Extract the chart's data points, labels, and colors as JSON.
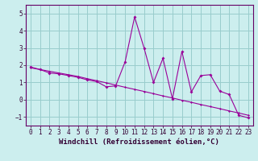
{
  "xlabel": "Windchill (Refroidissement éolien,°C)",
  "background_color": "#cceeee",
  "grid_color": "#99cccc",
  "line_color": "#990099",
  "xlim": [
    -0.5,
    23.5
  ],
  "ylim": [
    -1.5,
    5.5
  ],
  "yticks": [
    -1,
    0,
    1,
    2,
    3,
    4,
    5
  ],
  "xticks": [
    0,
    1,
    2,
    3,
    4,
    5,
    6,
    7,
    8,
    9,
    10,
    11,
    12,
    13,
    14,
    15,
    16,
    17,
    18,
    19,
    20,
    21,
    22,
    23
  ],
  "data_x": [
    0,
    1,
    2,
    3,
    4,
    5,
    6,
    7,
    8,
    9,
    10,
    11,
    12,
    13,
    14,
    15,
    16,
    17,
    18,
    19,
    20,
    21,
    22,
    23
  ],
  "data_y1": [
    1.9,
    1.75,
    1.55,
    1.5,
    1.4,
    1.3,
    1.15,
    1.05,
    0.75,
    0.8,
    2.2,
    4.8,
    3.0,
    1.0,
    2.4,
    0.05,
    2.8,
    0.45,
    1.4,
    1.45,
    0.5,
    0.3,
    -0.9,
    -1.05
  ],
  "trend_y": [
    1.85,
    1.75,
    1.65,
    1.55,
    1.45,
    1.35,
    1.22,
    1.1,
    0.98,
    0.85,
    0.72,
    0.6,
    0.48,
    0.35,
    0.22,
    0.1,
    -0.03,
    -0.15,
    -0.28,
    -0.4,
    -0.52,
    -0.65,
    -0.77,
    -0.9
  ],
  "tick_fontsize": 5.5,
  "xlabel_fontsize": 6.5
}
